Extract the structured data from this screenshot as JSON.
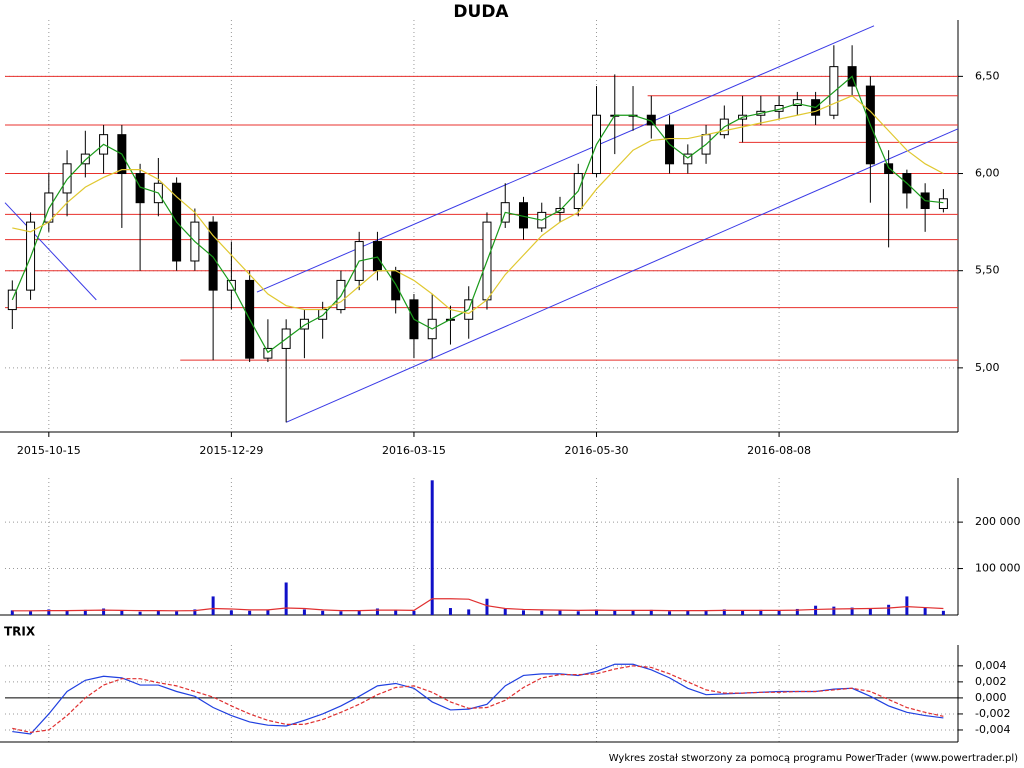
{
  "title": "DUDA",
  "footer": "Wykres został stworzony za pomocą programu PowerTrader (www.powertrader.pl)",
  "chart_data": [
    {
      "type": "candlestick",
      "x": [
        2,
        7,
        12,
        17,
        22,
        27,
        32,
        37,
        42,
        47,
        52,
        57,
        62,
        67,
        72,
        77,
        82,
        87,
        92,
        97,
        102,
        107,
        112,
        117,
        122,
        127,
        132,
        137,
        142,
        147,
        152,
        157,
        162,
        167,
        172,
        177,
        182,
        187,
        192,
        197,
        202,
        207,
        212,
        217,
        222,
        227,
        232,
        237,
        242,
        247,
        252,
        257
      ],
      "xlim": [
        0,
        261
      ],
      "xticks": [
        {
          "value": 12,
          "label": "2015-10-15"
        },
        {
          "value": 62,
          "label": "2015-12-29"
        },
        {
          "value": 112,
          "label": "2016-03-15"
        },
        {
          "value": 162,
          "label": "2016-05-30"
        },
        {
          "value": 212,
          "label": "2016-08-08"
        }
      ],
      "open": [
        5.3,
        5.4,
        5.75,
        5.9,
        6.05,
        6.1,
        6.2,
        6.0,
        5.85,
        5.95,
        5.55,
        5.75,
        5.4,
        5.45,
        5.05,
        5.1,
        5.2,
        5.25,
        5.3,
        5.45,
        5.65,
        5.5,
        5.35,
        5.15,
        5.25,
        5.25,
        5.35,
        5.75,
        5.85,
        5.72,
        5.8,
        5.82,
        6.0,
        6.3,
        6.3,
        6.3,
        6.25,
        6.05,
        6.1,
        6.2,
        6.28,
        6.3,
        6.32,
        6.35,
        6.38,
        6.3,
        6.55,
        6.45,
        6.05,
        6.0,
        5.9,
        5.82
      ],
      "high": [
        5.45,
        5.8,
        6.0,
        6.12,
        6.22,
        6.25,
        6.25,
        6.05,
        6.08,
        5.98,
        5.82,
        5.78,
        5.65,
        5.5,
        5.25,
        5.25,
        5.3,
        5.34,
        5.5,
        5.7,
        5.7,
        5.52,
        5.38,
        5.38,
        5.32,
        5.42,
        5.8,
        5.95,
        5.88,
        5.85,
        5.88,
        6.05,
        6.45,
        6.51,
        6.45,
        6.4,
        6.3,
        6.15,
        6.25,
        6.35,
        6.4,
        6.4,
        6.4,
        6.42,
        6.42,
        6.66,
        6.66,
        6.5,
        6.12,
        6.02,
        5.95,
        5.92
      ],
      "low": [
        5.2,
        5.35,
        5.7,
        5.78,
        5.98,
        6.0,
        5.72,
        5.5,
        5.78,
        5.5,
        5.5,
        5.04,
        5.3,
        5.03,
        5.03,
        4.72,
        5.05,
        5.15,
        5.28,
        5.4,
        5.45,
        5.28,
        5.05,
        5.05,
        5.12,
        5.15,
        5.3,
        5.72,
        5.66,
        5.7,
        5.75,
        5.78,
        5.98,
        6.1,
        6.22,
        6.18,
        6.0,
        6.0,
        6.05,
        6.18,
        6.16,
        6.25,
        6.28,
        6.3,
        6.25,
        6.28,
        6.4,
        5.85,
        5.62,
        5.82,
        5.7,
        5.8
      ],
      "close": [
        5.4,
        5.75,
        5.9,
        6.05,
        6.1,
        6.2,
        6.0,
        5.85,
        5.95,
        5.55,
        5.75,
        5.4,
        5.45,
        5.05,
        5.1,
        5.2,
        5.25,
        5.3,
        5.45,
        5.65,
        5.5,
        5.35,
        5.15,
        5.25,
        5.25,
        5.35,
        5.75,
        5.85,
        5.72,
        5.8,
        5.82,
        6.0,
        6.3,
        6.3,
        6.3,
        6.25,
        6.05,
        6.1,
        6.2,
        6.28,
        6.3,
        6.32,
        6.35,
        6.38,
        6.3,
        6.55,
        6.45,
        6.05,
        6.0,
        5.9,
        5.82,
        5.87
      ],
      "lines": [
        {
          "color": "#1a9a1a",
          "values": [
            5.35,
            5.57,
            5.82,
            5.97,
            6.07,
            6.15,
            6.1,
            5.93,
            5.9,
            5.75,
            5.65,
            5.57,
            5.43,
            5.25,
            5.08,
            5.15,
            5.22,
            5.27,
            5.37,
            5.55,
            5.57,
            5.43,
            5.25,
            5.2,
            5.25,
            5.3,
            5.55,
            5.8,
            5.78,
            5.76,
            5.81,
            5.91,
            6.15,
            6.3,
            6.3,
            6.27,
            6.15,
            6.08,
            6.15,
            6.24,
            6.29,
            6.31,
            6.33,
            6.36,
            6.34,
            6.42,
            6.5,
            6.25,
            6.03,
            5.95,
            5.86,
            5.85
          ]
        },
        {
          "color": "#e0c830",
          "values": [
            5.72,
            5.7,
            5.75,
            5.85,
            5.93,
            5.98,
            6.02,
            6.02,
            5.97,
            5.88,
            5.8,
            5.68,
            5.58,
            5.48,
            5.38,
            5.32,
            5.3,
            5.3,
            5.34,
            5.42,
            5.5,
            5.5,
            5.45,
            5.38,
            5.3,
            5.28,
            5.35,
            5.48,
            5.58,
            5.68,
            5.75,
            5.8,
            5.92,
            6.02,
            6.12,
            6.17,
            6.18,
            6.18,
            6.2,
            6.22,
            6.24,
            6.26,
            6.28,
            6.3,
            6.32,
            6.36,
            6.4,
            6.32,
            6.22,
            6.12,
            6.05,
            6.0
          ]
        }
      ],
      "level_color": "#e8302c",
      "levels": [
        {
          "value": 6.5,
          "from": 0
        },
        {
          "value": 6.4,
          "from": 176
        },
        {
          "value": 6.25,
          "from": 0
        },
        {
          "value": 6.16,
          "from": 201
        },
        {
          "value": 6.0,
          "from": 0
        },
        {
          "value": 5.79,
          "from": 0
        },
        {
          "value": 5.66,
          "from": 0
        },
        {
          "value": 5.5,
          "from": 0
        },
        {
          "value": 5.31,
          "from": 0
        },
        {
          "value": 5.04,
          "from": 48
        }
      ],
      "trend_color": "#3a3ae6",
      "trendlines": [
        {
          "x": [
            69,
            238
          ],
          "y": [
            5.39,
            6.76
          ]
        },
        {
          "x": [
            77,
            261
          ],
          "y": [
            4.72,
            6.23
          ]
        },
        {
          "x": [
            0,
            25
          ],
          "y": [
            5.85,
            5.35
          ]
        }
      ],
      "ylim": [
        4.67,
        6.79
      ],
      "yticks": [
        {
          "value": 5.0,
          "label": "5,00"
        },
        {
          "value": 5.5,
          "label": "5,50"
        },
        {
          "value": 6.0,
          "label": "6,00"
        },
        {
          "value": 6.5,
          "label": "6,50"
        }
      ],
      "grid": true
    },
    {
      "type": "bar",
      "color": "#1010c8",
      "values": [
        10000,
        8000,
        12000,
        9000,
        11000,
        14000,
        9000,
        7000,
        10000,
        8000,
        12000,
        40000,
        10000,
        9000,
        11000,
        70000,
        12000,
        9000,
        8000,
        10000,
        14000,
        11000,
        9000,
        290000,
        15000,
        12000,
        35000,
        13000,
        10000,
        9000,
        11000,
        8000,
        12000,
        10000,
        9000,
        11000,
        8000,
        10000,
        9000,
        12000,
        10000,
        11000,
        9000,
        13000,
        20000,
        18000,
        16000,
        14000,
        22000,
        40000,
        15000,
        9000
      ],
      "lines": [
        {
          "color": "#e03030",
          "values": [
            9000,
            9000,
            9500,
            9500,
            10000,
            10500,
            10000,
            9500,
            9500,
            9000,
            9500,
            14000,
            13000,
            11000,
            11000,
            15000,
            14000,
            11000,
            9500,
            9500,
            10500,
            10500,
            10000,
            35000,
            35000,
            34000,
            20000,
            14000,
            12000,
            11000,
            10500,
            10000,
            10500,
            10000,
            10000,
            10000,
            9500,
            9500,
            9500,
            10000,
            10000,
            10000,
            10000,
            10500,
            12000,
            13000,
            13500,
            14000,
            15000,
            18000,
            16000,
            14000
          ]
        }
      ],
      "xlim": [
        0,
        261
      ],
      "ylim": [
        0,
        295000
      ],
      "yticks": [
        {
          "value": 100000,
          "label": "100 000"
        },
        {
          "value": 200000,
          "label": "200 000"
        }
      ],
      "grid": true
    },
    {
      "type": "line",
      "title": "TRIX",
      "series": [
        {
          "color": "#2040e0",
          "style": "solid",
          "values": [
            -0.0042,
            -0.0045,
            -0.002,
            0.0008,
            0.0022,
            0.0027,
            0.0025,
            0.0016,
            0.0016,
            0.0008,
            0.0002,
            -0.0012,
            -0.0022,
            -0.003,
            -0.0034,
            -0.0035,
            -0.0028,
            -0.002,
            -0.001,
            0.0002,
            0.0015,
            0.0018,
            0.0012,
            -0.0005,
            -0.0015,
            -0.0014,
            -0.0008,
            0.0015,
            0.0028,
            0.003,
            0.003,
            0.0028,
            0.0033,
            0.0042,
            0.0042,
            0.0035,
            0.0025,
            0.0012,
            0.0004,
            0.0005,
            0.0006,
            0.0007,
            0.0008,
            0.0008,
            0.0008,
            0.0011,
            0.0012,
            0.0002,
            -0.001,
            -0.0018,
            -0.0022,
            -0.0025
          ]
        },
        {
          "color": "#e03030",
          "style": "dashed",
          "values": [
            -0.0038,
            -0.0043,
            -0.004,
            -0.0022,
            0.0,
            0.0016,
            0.0024,
            0.0024,
            0.0019,
            0.0015,
            0.0008,
            0.0001,
            -0.001,
            -0.002,
            -0.0028,
            -0.0033,
            -0.0033,
            -0.0027,
            -0.0018,
            -0.0008,
            0.0004,
            0.0013,
            0.0015,
            0.0007,
            -0.0005,
            -0.0013,
            -0.0012,
            -0.0003,
            0.0013,
            0.0025,
            0.0029,
            0.0029,
            0.003,
            0.0036,
            0.004,
            0.0038,
            0.003,
            0.002,
            0.001,
            0.0006,
            0.0006,
            0.0007,
            0.0007,
            0.0008,
            0.0008,
            0.001,
            0.0012,
            0.0008,
            -0.0002,
            -0.0012,
            -0.0018,
            -0.0023
          ]
        }
      ],
      "xlim": [
        0,
        261
      ],
      "ylim": [
        -0.0055,
        0.0066
      ],
      "yticks": [
        {
          "value": -0.004,
          "label": "-0,004"
        },
        {
          "value": -0.002,
          "label": "-0,002"
        },
        {
          "value": 0,
          "label": "0,000"
        },
        {
          "value": 0.002,
          "label": "0,002"
        },
        {
          "value": 0.004,
          "label": "0,004"
        }
      ],
      "grid": true
    }
  ]
}
